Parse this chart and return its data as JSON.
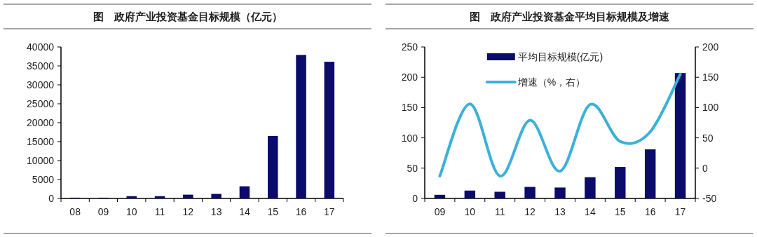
{
  "chart_data": [
    {
      "type": "bar",
      "title": "图　政府产业投资基金目标规模（亿元）",
      "categories": [
        "08",
        "09",
        "10",
        "11",
        "12",
        "13",
        "14",
        "15",
        "16",
        "17"
      ],
      "values": [
        200,
        200,
        600,
        600,
        1000,
        1200,
        3200,
        16500,
        37900,
        36100
      ],
      "color": "#0b0b6b",
      "ylim": [
        0,
        40000
      ],
      "yticks": [
        0,
        5000,
        10000,
        15000,
        20000,
        25000,
        30000,
        35000,
        40000
      ]
    },
    {
      "type": "bar",
      "title": "图　政府产业投资基金平均目标规模及增速",
      "categories": [
        "09",
        "10",
        "11",
        "12",
        "13",
        "14",
        "15",
        "16",
        "17"
      ],
      "series": [
        {
          "name": "平均目标规模(亿元)",
          "color": "#0b0b6b",
          "values": [
            6,
            13,
            11,
            19,
            18,
            35,
            52,
            81,
            207
          ]
        },
        {
          "name": "增速（%，右）",
          "type": "line",
          "axis": "y2",
          "color": "#3cb0d8",
          "values": [
            -13,
            106,
            -13,
            79,
            -5,
            105,
            44,
            60,
            155
          ]
        }
      ],
      "ylim": [
        0,
        250
      ],
      "yticks": [
        0,
        50,
        100,
        150,
        200,
        250
      ],
      "y2lim": [
        -50,
        200
      ],
      "y2ticks": [
        -50,
        0,
        50,
        100,
        150,
        200
      ],
      "legend": "top"
    }
  ]
}
